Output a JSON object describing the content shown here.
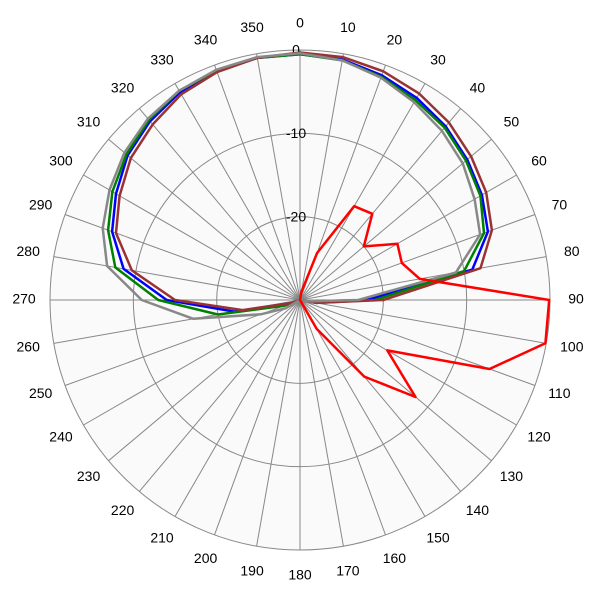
{
  "chart_data": {
    "type": "polar",
    "thetaticks": [
      0,
      10,
      20,
      30,
      40,
      50,
      60,
      70,
      80,
      90,
      100,
      110,
      120,
      130,
      140,
      150,
      160,
      170,
      180,
      190,
      200,
      210,
      220,
      230,
      240,
      250,
      260,
      270,
      280,
      290,
      300,
      310,
      320,
      330,
      340,
      350
    ],
    "theta": [
      0,
      10,
      20,
      30,
      40,
      50,
      60,
      70,
      80,
      90,
      100,
      110,
      120,
      130,
      140,
      150,
      160,
      170,
      180,
      190,
      200,
      210,
      220,
      230,
      240,
      250,
      260,
      270,
      280,
      290,
      300,
      310,
      320,
      330,
      340,
      350
    ],
    "rlim": [
      -30,
      0
    ],
    "rticks": [
      -20,
      -10,
      0
    ],
    "grid": true,
    "series": [
      {
        "color": "#0000ff",
        "values": [
          -0.5,
          -0.7,
          -1.3,
          -2,
          -2.8,
          -3.8,
          -4.8,
          -6,
          -9,
          -22,
          -29,
          -30,
          -30,
          -30,
          -30,
          -30,
          -30,
          -30,
          -30,
          -30,
          -30,
          -30,
          -30,
          -30,
          -30,
          -29,
          -22,
          -14,
          -8.5,
          -6,
          -4.5,
          -3,
          -2,
          -1.2,
          -0.8,
          -0.5
        ]
      },
      {
        "color": "#008000",
        "values": [
          -0.5,
          -0.8,
          -1.5,
          -2.3,
          -3,
          -4,
          -5,
          -6.5,
          -10,
          -21,
          -28,
          -30,
          -30,
          -30,
          -30,
          -30,
          -30,
          -30,
          -30,
          -30,
          -30,
          -30,
          -30,
          -30,
          -30,
          -28,
          -20,
          -13,
          -7.5,
          -5.5,
          -4,
          -2.8,
          -1.8,
          -1,
          -0.7,
          -0.5
        ]
      },
      {
        "color": "#993333",
        "values": [
          -0.3,
          -0.4,
          -0.8,
          -1.4,
          -2.2,
          -3.2,
          -4.2,
          -5.5,
          -8,
          -20,
          -28,
          -30,
          -30,
          -30,
          -30,
          -30,
          -30,
          -30,
          -30,
          -30,
          -30,
          -30,
          -30,
          -30,
          -30,
          -29,
          -23,
          -15,
          -9.5,
          -6.5,
          -5,
          -3.5,
          -2.5,
          -1.5,
          -0.9,
          -0.5
        ]
      },
      {
        "color": "#888888",
        "values": [
          -0.4,
          -0.8,
          -1.6,
          -2.6,
          -3.5,
          -4.5,
          -5.8,
          -7,
          -11,
          -23,
          -29,
          -30,
          -30,
          -30,
          -30,
          -30,
          -30,
          -30,
          -30,
          -30,
          -30,
          -30,
          -30,
          -30,
          -28,
          -25,
          -17,
          -11,
          -6.5,
          -4.8,
          -3.6,
          -2.5,
          -1.6,
          -1,
          -0.6,
          -0.4
        ]
      },
      {
        "color": "#ff0000",
        "values": [
          -30,
          -29,
          -24,
          -17,
          -16.5,
          -20,
          -16.5,
          -17,
          -15.4,
          -0.1,
          -0.1,
          -5.8,
          -17.9,
          -11.9,
          -18,
          -26,
          -30,
          -30,
          -30,
          -30,
          -30,
          -30,
          -30,
          -30,
          -30,
          -30,
          -30,
          -30,
          -30,
          -30,
          -30,
          -30,
          -30,
          -30,
          -30,
          -30
        ]
      }
    ]
  }
}
